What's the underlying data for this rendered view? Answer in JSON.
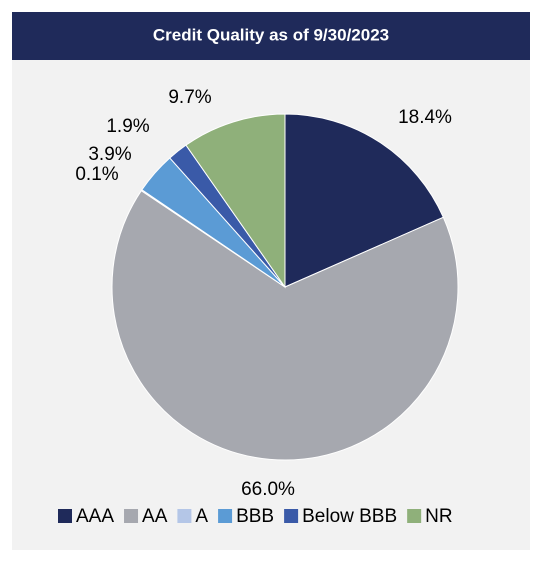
{
  "chart_data": {
    "type": "pie",
    "title": "Credit Quality as of 9/30/2023",
    "categories": [
      "AAA",
      "AA",
      "A",
      "BBB",
      "Below BBB",
      "NR"
    ],
    "values": [
      18.4,
      66.0,
      0.1,
      3.9,
      1.9,
      9.7
    ],
    "value_labels": [
      "18.4%",
      "66.0%",
      "0.1%",
      "3.9%",
      "1.9%",
      "9.7%"
    ],
    "colors": [
      "#1f2a5a",
      "#a6a8af",
      "#b4c6e7",
      "#5b9bd5",
      "#3a5aa8",
      "#8fb07a"
    ],
    "legend": "bottom"
  }
}
